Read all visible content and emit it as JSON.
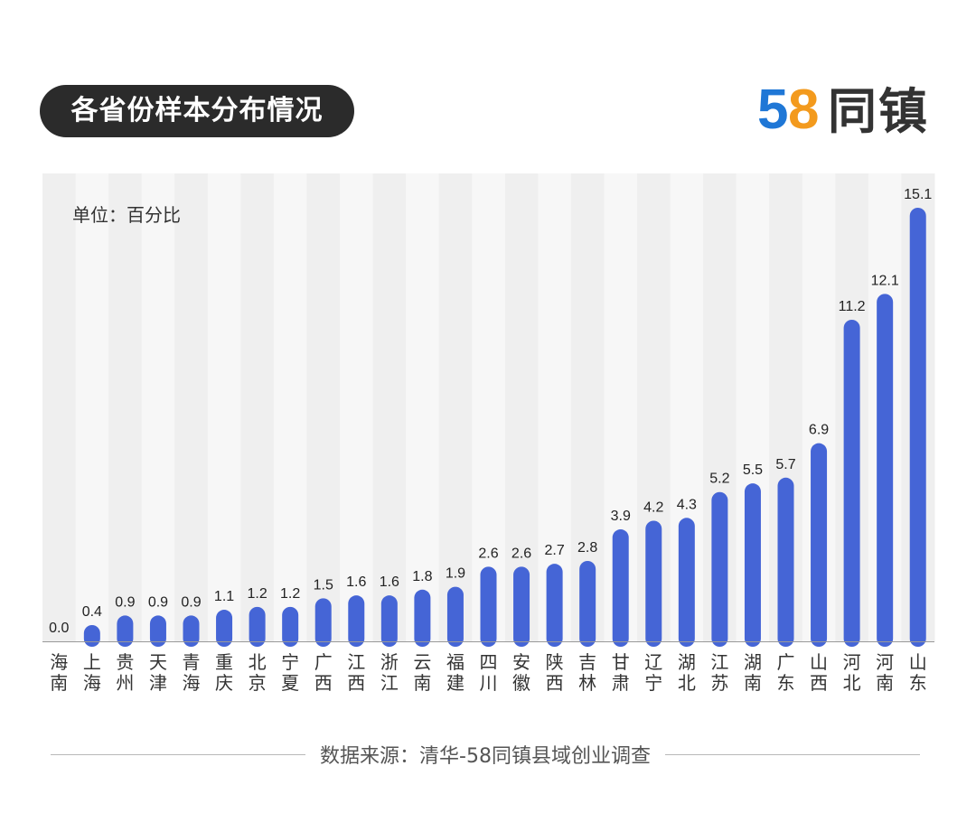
{
  "title": "各省份样本分布情况",
  "logo": {
    "five": "5",
    "eight": "8",
    "text": "同镇"
  },
  "unit": "单位：百分比",
  "source": "数据来源：清华-58同镇县域创业调查",
  "colors": {
    "bar": "#4565d6",
    "stripe_light": "#f7f7f7",
    "stripe_dark": "#efefef",
    "axis": "#999999"
  },
  "chart_data": {
    "type": "bar",
    "title": "各省份样本分布情况",
    "ylabel": "单位：百分比",
    "ylim": [
      0,
      15.1
    ],
    "categories": [
      "海南",
      "上海",
      "贵州",
      "天津",
      "青海",
      "重庆",
      "北京",
      "宁夏",
      "广西",
      "江西",
      "浙江",
      "云南",
      "福建",
      "四川",
      "安徽",
      "陕西",
      "吉林",
      "甘肃",
      "辽宁",
      "湖北",
      "江苏",
      "湖南",
      "广东",
      "山西",
      "河北",
      "河南",
      "山东"
    ],
    "values": [
      0.0,
      0.4,
      0.9,
      0.9,
      0.9,
      1.1,
      1.2,
      1.2,
      1.5,
      1.6,
      1.6,
      1.8,
      1.9,
      2.6,
      2.6,
      2.7,
      2.8,
      3.9,
      4.2,
      4.3,
      5.2,
      5.5,
      5.7,
      6.9,
      11.2,
      12.1,
      15.1
    ],
    "labels": [
      "0.0",
      "0.4",
      "0.9",
      "0.9",
      "0.9",
      "1.1",
      "1.2",
      "1.2",
      "1.5",
      "1.6",
      "1.6",
      "1.8",
      "1.9",
      "2.6",
      "2.6",
      "2.7",
      "2.8",
      "3.9",
      "4.2",
      "4.3",
      "5.2",
      "5.5",
      "5.7",
      "6.9",
      "11.2",
      "12.1",
      "15.1"
    ],
    "grid": false,
    "legend": "none"
  }
}
